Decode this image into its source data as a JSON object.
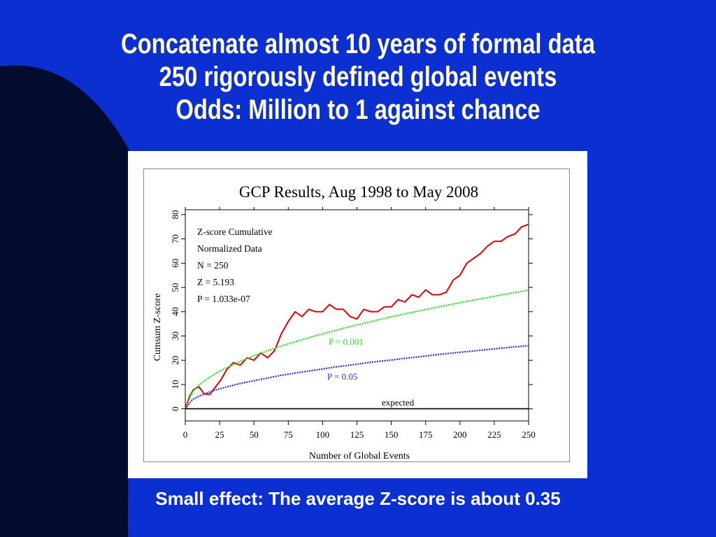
{
  "slide": {
    "title_lines": [
      "Concatenate almost 10 years of formal data",
      "250 rigorously defined global events",
      "Odds: Million to 1 against chance"
    ],
    "footer": "Small effect: The average Z-score is about 0.35",
    "colors": {
      "background": "#0b2fd0",
      "title": "#fffbd6",
      "footer": "#ffffff",
      "corner_shape": "#020c2e"
    }
  },
  "chart_data": {
    "type": "line",
    "title": "GCP Results, Aug 1998 to May 2008",
    "xlabel": "Number of Global Events",
    "ylabel": "Cumsum Z-score",
    "xlim": [
      0,
      250
    ],
    "ylim": [
      -5,
      82
    ],
    "xticks": [
      0,
      25,
      50,
      75,
      100,
      125,
      150,
      175,
      200,
      225,
      250
    ],
    "yticks": [
      0,
      10,
      20,
      30,
      40,
      50,
      60,
      70,
      80
    ],
    "grid": false,
    "annotations": [
      "Z-score Cumulative",
      "Normalized Data",
      "N = 250",
      "Z = 5.193",
      "P = 1.033e-07"
    ],
    "series": [
      {
        "name": "",
        "style": "solid",
        "color": "#e00000",
        "x": [
          0,
          3,
          6,
          10,
          14,
          18,
          22,
          26,
          30,
          35,
          40,
          45,
          50,
          55,
          60,
          65,
          70,
          75,
          80,
          85,
          90,
          95,
          100,
          105,
          110,
          115,
          120,
          125,
          130,
          135,
          140,
          145,
          150,
          155,
          160,
          165,
          170,
          175,
          180,
          185,
          190,
          195,
          200,
          205,
          210,
          215,
          220,
          225,
          230,
          235,
          240,
          245,
          250
        ],
        "y": [
          0,
          5,
          8,
          9,
          6,
          6,
          9,
          12,
          16,
          19,
          18,
          21,
          20,
          23,
          21,
          24,
          31,
          36,
          40,
          38,
          41,
          40,
          40,
          43,
          41,
          41,
          38,
          37,
          41,
          40,
          40,
          42,
          42,
          45,
          44,
          47,
          46,
          49,
          47,
          47,
          48,
          53,
          55,
          60,
          62,
          64,
          67,
          69,
          69,
          71,
          72,
          75,
          76
        ]
      },
      {
        "name": "P = 0.001",
        "style": "dotted",
        "color": "#22e022",
        "x": [
          0,
          5,
          10,
          15,
          20,
          25,
          30,
          40,
          50,
          60,
          70,
          80,
          90,
          100,
          110,
          120,
          130,
          140,
          150,
          160,
          170,
          180,
          190,
          200,
          210,
          220,
          230,
          240,
          250
        ],
        "y": [
          0,
          6.9,
          9.8,
          12.0,
          13.8,
          15.5,
          16.9,
          19.5,
          21.9,
          23.9,
          25.9,
          27.6,
          29.3,
          30.9,
          32.4,
          33.9,
          35.2,
          36.6,
          37.9,
          39.1,
          40.3,
          41.5,
          42.6,
          43.7,
          44.8,
          45.8,
          46.9,
          47.9,
          48.9
        ]
      },
      {
        "name": "P = 0.05",
        "style": "dotted",
        "color": "#1f2fd8",
        "x": [
          0,
          5,
          10,
          15,
          20,
          25,
          30,
          40,
          50,
          60,
          70,
          80,
          90,
          100,
          110,
          120,
          130,
          140,
          150,
          160,
          170,
          180,
          190,
          200,
          210,
          220,
          230,
          240,
          250
        ],
        "y": [
          0,
          3.7,
          5.2,
          6.4,
          7.4,
          8.2,
          9.0,
          10.4,
          11.6,
          12.7,
          13.8,
          14.7,
          15.6,
          16.4,
          17.3,
          18.0,
          18.8,
          19.5,
          20.1,
          20.8,
          21.4,
          22.1,
          22.7,
          23.3,
          23.8,
          24.4,
          25.0,
          25.5,
          26.0
        ]
      },
      {
        "name": "expected",
        "style": "solid",
        "color": "#000000",
        "x": [
          0,
          250
        ],
        "y": [
          0,
          0
        ]
      }
    ]
  }
}
